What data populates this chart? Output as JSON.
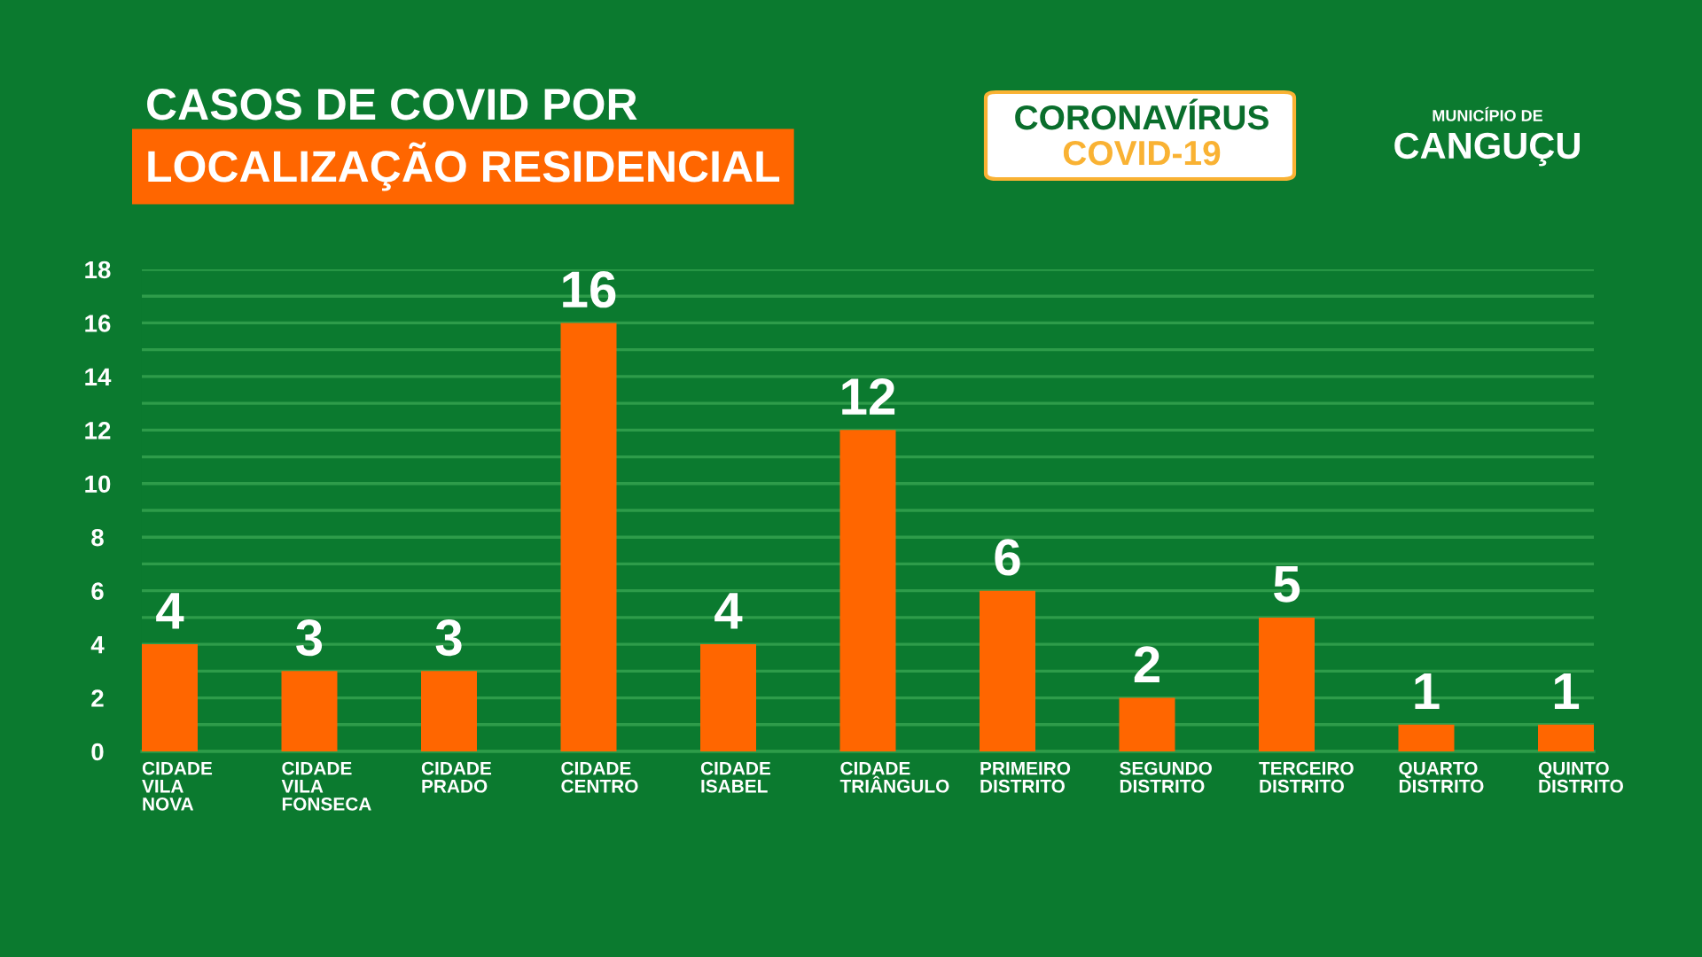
{
  "chart_data": {
    "type": "bar",
    "title": "CASOS DE COVID POR",
    "subtitle": "LOCALIZAÇÃO RESIDENCIAL",
    "categories": [
      "CIDADE\nVILA\nNOVA",
      "CIDADE\nVILA\nFONSECA",
      "CIDADE\nPRADO",
      "CIDADE\nCENTRO",
      "CIDADE\nISABEL",
      "CIDADE\nTRIÂNGULO",
      "PRIMEIRO\nDISTRITO",
      "SEGUNDO\nDISTRITO",
      "TERCEIRO\nDISTRITO",
      "QUARTO\nDISTRITO",
      "QUINTO\nDISTRITO"
    ],
    "values": [
      4,
      3,
      3,
      16,
      4,
      12,
      6,
      2,
      5,
      1,
      1
    ],
    "color": "#ff6600",
    "ylim": [
      0,
      18
    ],
    "yticks": [
      0,
      {
        "value": 1,
        "label": null
      },
      2,
      {
        "value": 3,
        "label": null
      },
      4,
      {
        "value": 5,
        "label": null
      },
      6,
      {
        "value": 7,
        "label": null
      },
      8,
      {
        "value": 9,
        "label": null
      },
      10,
      {
        "value": 11,
        "label": null
      },
      12,
      {
        "value": 13,
        "label": null
      },
      14,
      {
        "value": 15,
        "label": null
      },
      16,
      {
        "value": 17,
        "label": null
      },
      18
    ],
    "grid": "y",
    "data_labels": true,
    "annotations": [
      "CORONAVÍRUS",
      "COVID-19",
      "MUNICÍPIO DE",
      "CANGUÇU"
    ]
  }
}
